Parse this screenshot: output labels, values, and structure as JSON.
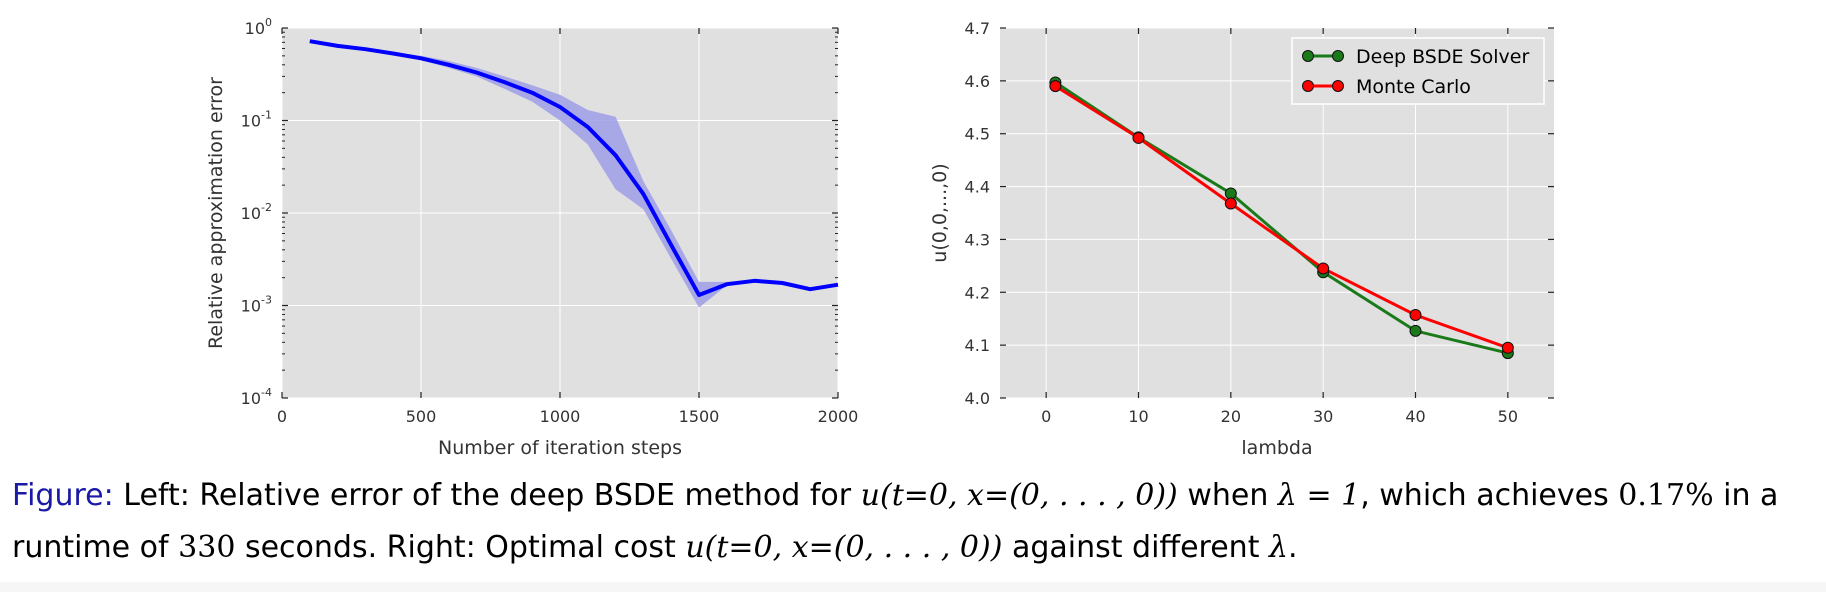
{
  "chart_data": [
    {
      "type": "line",
      "title": "",
      "xlabel": "Number of iteration steps",
      "ylabel": "Relative approximation error",
      "xlim": [
        0,
        2000
      ],
      "ylim": [
        0.0001,
        1
      ],
      "yscale": "log",
      "grid": true,
      "x_ticks": [
        "0",
        "500",
        "1000",
        "1500",
        "2000"
      ],
      "y_ticks": [
        {
          "base": "10",
          "exp": "-4",
          "value": 0.0001
        },
        {
          "base": "10",
          "exp": "-3",
          "value": 0.001
        },
        {
          "base": "10",
          "exp": "-2",
          "value": 0.01
        },
        {
          "base": "10",
          "exp": "-1",
          "value": 0.1
        },
        {
          "base": "10",
          "exp": "0",
          "value": 1
        }
      ],
      "series": [
        {
          "color": "#0000ff",
          "x": [
            100,
            200,
            300,
            400,
            500,
            600,
            700,
            800,
            900,
            1000,
            1100,
            1200,
            1300,
            1400,
            1500,
            1600,
            1700,
            1800,
            1900,
            2000
          ],
          "y": [
            0.72,
            0.64,
            0.59,
            0.53,
            0.47,
            0.4,
            0.33,
            0.26,
            0.2,
            0.14,
            0.085,
            0.042,
            0.016,
            0.0045,
            0.0013,
            0.0017,
            0.00185,
            0.00175,
            0.0015,
            0.00168
          ],
          "band_upper": [
            0.74,
            0.66,
            0.61,
            0.55,
            0.5,
            0.44,
            0.37,
            0.3,
            0.24,
            0.19,
            0.13,
            0.11,
            0.022,
            0.0065,
            0.0018,
            0.0018,
            0.0019,
            0.0018,
            0.00155,
            0.00172
          ],
          "band_lower": [
            0.7,
            0.62,
            0.57,
            0.51,
            0.45,
            0.37,
            0.3,
            0.22,
            0.16,
            0.1,
            0.055,
            0.018,
            0.011,
            0.0032,
            0.00095,
            0.00165,
            0.0018,
            0.0017,
            0.00145,
            0.00163
          ],
          "band_color": "#9e9ee8"
        }
      ]
    },
    {
      "type": "line",
      "title": "",
      "xlabel": "lambda",
      "ylabel": "u(0,0,...,0)",
      "xlim": [
        -5,
        55
      ],
      "ylim": [
        4.0,
        4.7
      ],
      "grid": true,
      "x_ticks": [
        "0",
        "10",
        "20",
        "30",
        "40",
        "50"
      ],
      "y_ticks": [
        "4.0",
        "4.1",
        "4.2",
        "4.3",
        "4.4",
        "4.5",
        "4.6",
        "4.7"
      ],
      "legend_position": "top-right",
      "series": [
        {
          "name": "Deep BSDE Solver",
          "color": "#1a7a1a",
          "x": [
            1,
            10,
            20,
            30,
            40,
            50
          ],
          "y": [
            4.597,
            4.493,
            4.387,
            4.238,
            4.127,
            4.085
          ]
        },
        {
          "name": "Monte Carlo",
          "color": "#ff0000",
          "x": [
            1,
            10,
            20,
            30,
            40,
            50
          ],
          "y": [
            4.59,
            4.492,
            4.368,
            4.245,
            4.157,
            4.095
          ]
        }
      ]
    }
  ],
  "caption": {
    "figure_label": "Figure:",
    "text_1": "Left: Relative error of the deep BSDE method for",
    "math_1": "u(t=0, x=(0, . . . , 0))",
    "text_2": "when",
    "math_2": "λ = 1",
    "text_3": ", which achieves",
    "num_1": "0.17%",
    "text_4": "in a runtime of",
    "num_2": "330",
    "text_5": "seconds. Right: Optimal cost",
    "math_3": "u(t=0, x=(0, . . . , 0))",
    "text_6": "against different",
    "math_4": "λ",
    "text_7": "."
  },
  "colors": {
    "plot_bg": "#e0e0e0",
    "grid": "#ffffff",
    "caption_label": "#1a1aa6"
  }
}
